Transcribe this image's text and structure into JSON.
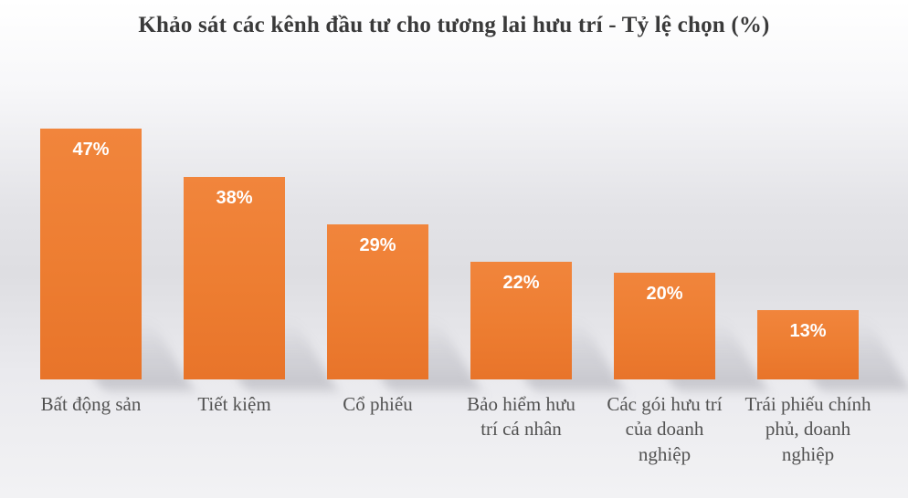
{
  "colors": {
    "background_top": "#ffffff",
    "background_mid": "#dedee2",
    "background_bottom": "#f2f2f4",
    "bar": "#ED7D31",
    "bar_gradient_top": "#F1853C",
    "bar_gradient_bottom": "#E8742A",
    "value_label": "#FFFFFF",
    "category_label": "#525252",
    "title": "#3A3A3A",
    "shadow": "rgba(110,110,122,0.30)"
  },
  "chart_data": {
    "type": "bar",
    "title": "Khảo sát các kênh đầu tư cho tương lai hưu trí - Tỷ lệ chọn (%)",
    "categories": [
      "Bất động sản",
      "Tiết kiệm",
      "Cổ phiếu",
      "Bảo hiểm hưu trí cá nhân",
      "Các gói hưu trí của doanh nghiệp",
      "Trái phiếu chính phủ, doanh nghiệp"
    ],
    "values": [
      47,
      38,
      29,
      22,
      20,
      13
    ],
    "value_labels": [
      "47%",
      "38%",
      "29%",
      "22%",
      "20%",
      "13%"
    ],
    "category_lines": [
      [
        "Bất động sản"
      ],
      [
        "Tiết kiệm"
      ],
      [
        "Cổ phiếu"
      ],
      [
        "Bảo hiểm hưu",
        "trí cá nhân"
      ],
      [
        "Các gói hưu trí",
        "của doanh",
        "nghiệp"
      ],
      [
        "Trái phiếu chính",
        "phủ, doanh",
        "nghiệp"
      ]
    ],
    "xlabel": "",
    "ylabel": "",
    "ylim": [
      0,
      50
    ],
    "grid": false,
    "legend": false,
    "axes_visible": false,
    "data_label_position": "inside-top"
  }
}
